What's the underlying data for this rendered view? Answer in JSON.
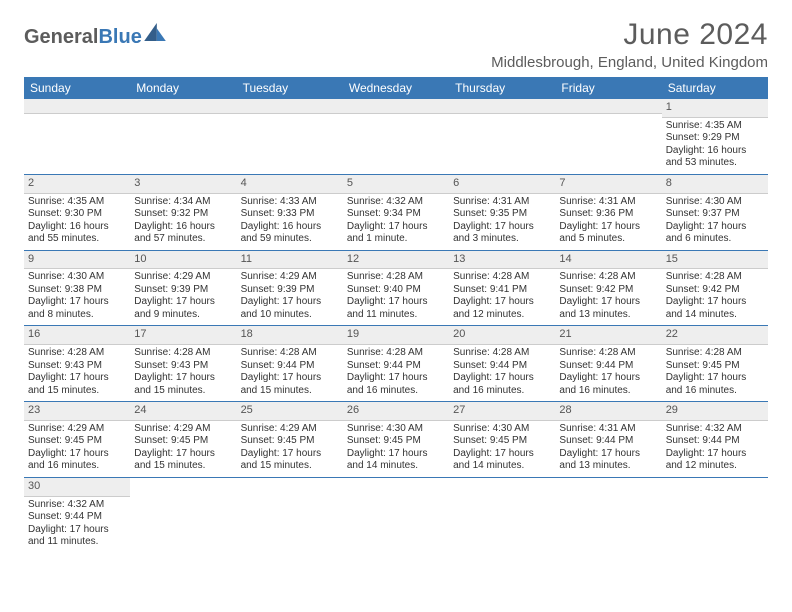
{
  "logo": {
    "text_gray": "General",
    "text_blue": "Blue",
    "icon_color": "#2f6aa8"
  },
  "title": "June 2024",
  "location": "Middlesbrough, England, United Kingdom",
  "colors": {
    "header_bg": "#3a78b5",
    "header_text": "#ffffff",
    "daynum_bg": "#eeeeee",
    "row_divider": "#3a78b5",
    "body_text": "#333333",
    "title_text": "#5c5c5c"
  },
  "weekdays": [
    "Sunday",
    "Monday",
    "Tuesday",
    "Wednesday",
    "Thursday",
    "Friday",
    "Saturday"
  ],
  "weeks": [
    [
      null,
      null,
      null,
      null,
      null,
      null,
      {
        "day": "1",
        "sunrise": "Sunrise: 4:35 AM",
        "sunset": "Sunset: 9:29 PM",
        "daylight": "Daylight: 16 hours and 53 minutes."
      }
    ],
    [
      {
        "day": "2",
        "sunrise": "Sunrise: 4:35 AM",
        "sunset": "Sunset: 9:30 PM",
        "daylight": "Daylight: 16 hours and 55 minutes."
      },
      {
        "day": "3",
        "sunrise": "Sunrise: 4:34 AM",
        "sunset": "Sunset: 9:32 PM",
        "daylight": "Daylight: 16 hours and 57 minutes."
      },
      {
        "day": "4",
        "sunrise": "Sunrise: 4:33 AM",
        "sunset": "Sunset: 9:33 PM",
        "daylight": "Daylight: 16 hours and 59 minutes."
      },
      {
        "day": "5",
        "sunrise": "Sunrise: 4:32 AM",
        "sunset": "Sunset: 9:34 PM",
        "daylight": "Daylight: 17 hours and 1 minute."
      },
      {
        "day": "6",
        "sunrise": "Sunrise: 4:31 AM",
        "sunset": "Sunset: 9:35 PM",
        "daylight": "Daylight: 17 hours and 3 minutes."
      },
      {
        "day": "7",
        "sunrise": "Sunrise: 4:31 AM",
        "sunset": "Sunset: 9:36 PM",
        "daylight": "Daylight: 17 hours and 5 minutes."
      },
      {
        "day": "8",
        "sunrise": "Sunrise: 4:30 AM",
        "sunset": "Sunset: 9:37 PM",
        "daylight": "Daylight: 17 hours and 6 minutes."
      }
    ],
    [
      {
        "day": "9",
        "sunrise": "Sunrise: 4:30 AM",
        "sunset": "Sunset: 9:38 PM",
        "daylight": "Daylight: 17 hours and 8 minutes."
      },
      {
        "day": "10",
        "sunrise": "Sunrise: 4:29 AM",
        "sunset": "Sunset: 9:39 PM",
        "daylight": "Daylight: 17 hours and 9 minutes."
      },
      {
        "day": "11",
        "sunrise": "Sunrise: 4:29 AM",
        "sunset": "Sunset: 9:39 PM",
        "daylight": "Daylight: 17 hours and 10 minutes."
      },
      {
        "day": "12",
        "sunrise": "Sunrise: 4:28 AM",
        "sunset": "Sunset: 9:40 PM",
        "daylight": "Daylight: 17 hours and 11 minutes."
      },
      {
        "day": "13",
        "sunrise": "Sunrise: 4:28 AM",
        "sunset": "Sunset: 9:41 PM",
        "daylight": "Daylight: 17 hours and 12 minutes."
      },
      {
        "day": "14",
        "sunrise": "Sunrise: 4:28 AM",
        "sunset": "Sunset: 9:42 PM",
        "daylight": "Daylight: 17 hours and 13 minutes."
      },
      {
        "day": "15",
        "sunrise": "Sunrise: 4:28 AM",
        "sunset": "Sunset: 9:42 PM",
        "daylight": "Daylight: 17 hours and 14 minutes."
      }
    ],
    [
      {
        "day": "16",
        "sunrise": "Sunrise: 4:28 AM",
        "sunset": "Sunset: 9:43 PM",
        "daylight": "Daylight: 17 hours and 15 minutes."
      },
      {
        "day": "17",
        "sunrise": "Sunrise: 4:28 AM",
        "sunset": "Sunset: 9:43 PM",
        "daylight": "Daylight: 17 hours and 15 minutes."
      },
      {
        "day": "18",
        "sunrise": "Sunrise: 4:28 AM",
        "sunset": "Sunset: 9:44 PM",
        "daylight": "Daylight: 17 hours and 15 minutes."
      },
      {
        "day": "19",
        "sunrise": "Sunrise: 4:28 AM",
        "sunset": "Sunset: 9:44 PM",
        "daylight": "Daylight: 17 hours and 16 minutes."
      },
      {
        "day": "20",
        "sunrise": "Sunrise: 4:28 AM",
        "sunset": "Sunset: 9:44 PM",
        "daylight": "Daylight: 17 hours and 16 minutes."
      },
      {
        "day": "21",
        "sunrise": "Sunrise: 4:28 AM",
        "sunset": "Sunset: 9:44 PM",
        "daylight": "Daylight: 17 hours and 16 minutes."
      },
      {
        "day": "22",
        "sunrise": "Sunrise: 4:28 AM",
        "sunset": "Sunset: 9:45 PM",
        "daylight": "Daylight: 17 hours and 16 minutes."
      }
    ],
    [
      {
        "day": "23",
        "sunrise": "Sunrise: 4:29 AM",
        "sunset": "Sunset: 9:45 PM",
        "daylight": "Daylight: 17 hours and 16 minutes."
      },
      {
        "day": "24",
        "sunrise": "Sunrise: 4:29 AM",
        "sunset": "Sunset: 9:45 PM",
        "daylight": "Daylight: 17 hours and 15 minutes."
      },
      {
        "day": "25",
        "sunrise": "Sunrise: 4:29 AM",
        "sunset": "Sunset: 9:45 PM",
        "daylight": "Daylight: 17 hours and 15 minutes."
      },
      {
        "day": "26",
        "sunrise": "Sunrise: 4:30 AM",
        "sunset": "Sunset: 9:45 PM",
        "daylight": "Daylight: 17 hours and 14 minutes."
      },
      {
        "day": "27",
        "sunrise": "Sunrise: 4:30 AM",
        "sunset": "Sunset: 9:45 PM",
        "daylight": "Daylight: 17 hours and 14 minutes."
      },
      {
        "day": "28",
        "sunrise": "Sunrise: 4:31 AM",
        "sunset": "Sunset: 9:44 PM",
        "daylight": "Daylight: 17 hours and 13 minutes."
      },
      {
        "day": "29",
        "sunrise": "Sunrise: 4:32 AM",
        "sunset": "Sunset: 9:44 PM",
        "daylight": "Daylight: 17 hours and 12 minutes."
      }
    ],
    [
      {
        "day": "30",
        "sunrise": "Sunrise: 4:32 AM",
        "sunset": "Sunset: 9:44 PM",
        "daylight": "Daylight: 17 hours and 11 minutes."
      },
      null,
      null,
      null,
      null,
      null,
      null
    ]
  ]
}
